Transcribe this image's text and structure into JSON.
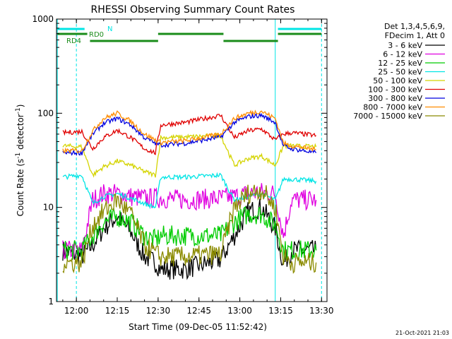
{
  "chart_data": {
    "type": "line",
    "title": "RHESSI Observing Summary Count Rates",
    "xlabel": "Start Time (09-Dec-05 11:52:42)",
    "ylabel_main": "Count Rate (s",
    "ylabel_sup1": "-1",
    "ylabel_mid": " detector",
    "ylabel_sup2": "-1",
    "ylabel_end": ")",
    "y_scale": "log",
    "ylim": [
      1,
      1000
    ],
    "xlim": [
      "11:52:42",
      "13:32"
    ],
    "x_ticks": [
      "12:00",
      "12:15",
      "12:30",
      "12:45",
      "13:00",
      "13:15",
      "13:30"
    ],
    "y_ticks": [
      "1",
      "10",
      "100",
      "1000"
    ],
    "legend_header": [
      "Det 1,3,4,5,6,9,",
      "FDecim 1, Att 0"
    ],
    "legend_position": "right",
    "timestamp": "21-Oct-2021 21:03",
    "flag_labels": {
      "N": "N",
      "RD0": "RD0",
      "RD4": "RD4"
    },
    "day_intervals": [
      [
        "11:53",
        "12:00"
      ],
      [
        "13:13",
        "13:30"
      ]
    ],
    "flags": [
      {
        "label": "N",
        "color": "#00e5e5",
        "segments": [
          [
            "11:53",
            "12:03"
          ],
          [
            "13:14",
            "13:30"
          ]
        ]
      },
      {
        "label": "RD0",
        "color": "#1a8c1a",
        "segments": [
          [
            "11:53",
            "12:04"
          ],
          [
            "12:30",
            "12:54"
          ],
          [
            "13:14",
            "13:30"
          ]
        ]
      },
      {
        "label": "RD4",
        "color": "#1a8c1a",
        "segments": [
          [
            "12:05",
            "12:30"
          ],
          [
            "12:54",
            "13:14"
          ]
        ]
      }
    ],
    "series": [
      {
        "name": "3 - 6 keV",
        "color": "#000000",
        "values": [
          [
            "11:55",
            3.5
          ],
          [
            "12:02",
            3.0
          ],
          [
            "12:06",
            4.0
          ],
          [
            "12:10",
            6.0
          ],
          [
            "12:15",
            8.0
          ],
          [
            "12:20",
            5.5
          ],
          [
            "12:25",
            3.0
          ],
          [
            "12:29",
            2.6
          ],
          [
            "12:31",
            2.2
          ],
          [
            "12:40",
            2.2
          ],
          [
            "12:53",
            2.8
          ],
          [
            "12:58",
            5.0
          ],
          [
            "13:03",
            9.0
          ],
          [
            "13:08",
            10.0
          ],
          [
            "13:13",
            6.0
          ],
          [
            "13:16",
            2.5
          ],
          [
            "13:19",
            3.5
          ],
          [
            "13:28",
            3.5
          ]
        ]
      },
      {
        "name": "6 - 12 keV",
        "color": "#e000e0",
        "values": [
          [
            "11:55",
            3.5
          ],
          [
            "12:02",
            3.5
          ],
          [
            "12:06",
            12.0
          ],
          [
            "12:10",
            14.0
          ],
          [
            "12:15",
            14.0
          ],
          [
            "12:20",
            13.0
          ],
          [
            "12:25",
            12.5
          ],
          [
            "12:29",
            12.5
          ],
          [
            "12:31",
            12.5
          ],
          [
            "12:40",
            12.0
          ],
          [
            "12:53",
            12.5
          ],
          [
            "12:58",
            13.0
          ],
          [
            "13:03",
            14.0
          ],
          [
            "13:08",
            14.5
          ],
          [
            "13:13",
            14.0
          ],
          [
            "13:16",
            5.0
          ],
          [
            "13:19",
            12.0
          ],
          [
            "13:28",
            12.0
          ]
        ]
      },
      {
        "name": "12 - 25 keV",
        "color": "#00cc00",
        "values": [
          [
            "11:55",
            3.5
          ],
          [
            "12:02",
            3.5
          ],
          [
            "12:06",
            5.0
          ],
          [
            "12:10",
            7.0
          ],
          [
            "12:15",
            8.0
          ],
          [
            "12:20",
            7.0
          ],
          [
            "12:25",
            5.0
          ],
          [
            "12:29",
            4.5
          ],
          [
            "12:31",
            5.0
          ],
          [
            "12:40",
            5.0
          ],
          [
            "12:53",
            5.0
          ],
          [
            "12:58",
            7.0
          ],
          [
            "13:03",
            8.5
          ],
          [
            "13:08",
            8.5
          ],
          [
            "13:13",
            6.5
          ],
          [
            "13:16",
            3.5
          ],
          [
            "13:19",
            3.5
          ],
          [
            "13:28",
            3.5
          ]
        ]
      },
      {
        "name": "25 - 50 keV",
        "color": "#00e5e5",
        "values": [
          [
            "11:55",
            21
          ],
          [
            "12:02",
            22
          ],
          [
            "12:06",
            11
          ],
          [
            "12:10",
            13
          ],
          [
            "12:15",
            14
          ],
          [
            "12:20",
            12.5
          ],
          [
            "12:25",
            11
          ],
          [
            "12:29",
            10
          ],
          [
            "12:31",
            21
          ],
          [
            "12:40",
            21
          ],
          [
            "12:53",
            22
          ],
          [
            "12:58",
            12
          ],
          [
            "13:03",
            13
          ],
          [
            "13:08",
            14
          ],
          [
            "13:13",
            12
          ],
          [
            "13:16",
            20
          ],
          [
            "13:19",
            20
          ],
          [
            "13:28",
            19
          ]
        ]
      },
      {
        "name": "50 - 100 keV",
        "color": "#d4d400",
        "values": [
          [
            "11:55",
            45
          ],
          [
            "12:02",
            44
          ],
          [
            "12:06",
            22
          ],
          [
            "12:10",
            27
          ],
          [
            "12:15",
            31
          ],
          [
            "12:20",
            28
          ],
          [
            "12:25",
            24
          ],
          [
            "12:29",
            22
          ],
          [
            "12:31",
            55
          ],
          [
            "12:40",
            56
          ],
          [
            "12:53",
            58
          ],
          [
            "12:58",
            28
          ],
          [
            "13:03",
            33
          ],
          [
            "13:08",
            35
          ],
          [
            "13:13",
            28
          ],
          [
            "13:16",
            45
          ],
          [
            "13:19",
            45
          ],
          [
            "13:28",
            44
          ]
        ]
      },
      {
        "name": "100 - 300 keV",
        "color": "#e00000",
        "values": [
          [
            "11:55",
            62
          ],
          [
            "12:02",
            64
          ],
          [
            "12:06",
            42
          ],
          [
            "12:10",
            55
          ],
          [
            "12:15",
            66
          ],
          [
            "12:20",
            55
          ],
          [
            "12:25",
            42
          ],
          [
            "12:29",
            38
          ],
          [
            "12:31",
            75
          ],
          [
            "12:40",
            80
          ],
          [
            "12:53",
            95
          ],
          [
            "12:58",
            55
          ],
          [
            "13:03",
            65
          ],
          [
            "13:08",
            68
          ],
          [
            "13:13",
            52
          ],
          [
            "13:16",
            60
          ],
          [
            "13:19",
            62
          ],
          [
            "13:28",
            58
          ]
        ]
      },
      {
        "name": "300 - 800 keV",
        "color": "#0000e0",
        "values": [
          [
            "11:55",
            38
          ],
          [
            "12:02",
            38
          ],
          [
            "12:06",
            60
          ],
          [
            "12:10",
            78
          ],
          [
            "12:15",
            88
          ],
          [
            "12:20",
            75
          ],
          [
            "12:25",
            55
          ],
          [
            "12:29",
            48
          ],
          [
            "12:31",
            46
          ],
          [
            "12:40",
            48
          ],
          [
            "12:53",
            56
          ],
          [
            "12:58",
            80
          ],
          [
            "13:03",
            92
          ],
          [
            "13:08",
            95
          ],
          [
            "13:13",
            80
          ],
          [
            "13:16",
            45
          ],
          [
            "13:19",
            42
          ],
          [
            "13:28",
            38
          ]
        ]
      },
      {
        "name": "800 - 7000 keV",
        "color": "#ff8c00",
        "values": [
          [
            "11:55",
            40
          ],
          [
            "12:02",
            40
          ],
          [
            "12:06",
            65
          ],
          [
            "12:10",
            88
          ],
          [
            "12:15",
            100
          ],
          [
            "12:20",
            82
          ],
          [
            "12:25",
            60
          ],
          [
            "12:29",
            52
          ],
          [
            "12:31",
            49
          ],
          [
            "12:40",
            51
          ],
          [
            "12:53",
            60
          ],
          [
            "12:58",
            88
          ],
          [
            "13:03",
            100
          ],
          [
            "13:08",
            105
          ],
          [
            "13:13",
            88
          ],
          [
            "13:16",
            48
          ],
          [
            "13:19",
            45
          ],
          [
            "13:28",
            41
          ]
        ]
      },
      {
        "name": "7000 - 15000 keV",
        "color": "#8b8b00",
        "values": [
          [
            "11:55",
            2.6
          ],
          [
            "12:02",
            2.6
          ],
          [
            "12:06",
            6.5
          ],
          [
            "12:10",
            9.0
          ],
          [
            "12:15",
            12.0
          ],
          [
            "12:20",
            8.5
          ],
          [
            "12:25",
            4.0
          ],
          [
            "12:29",
            3.2
          ],
          [
            "12:31",
            3.0
          ],
          [
            "12:40",
            3.0
          ],
          [
            "12:53",
            3.2
          ],
          [
            "12:58",
            10.0
          ],
          [
            "13:03",
            14.0
          ],
          [
            "13:08",
            15.5
          ],
          [
            "13:13",
            10.0
          ],
          [
            "13:16",
            3.0
          ],
          [
            "13:19",
            2.6
          ],
          [
            "13:28",
            2.6
          ]
        ]
      }
    ]
  }
}
